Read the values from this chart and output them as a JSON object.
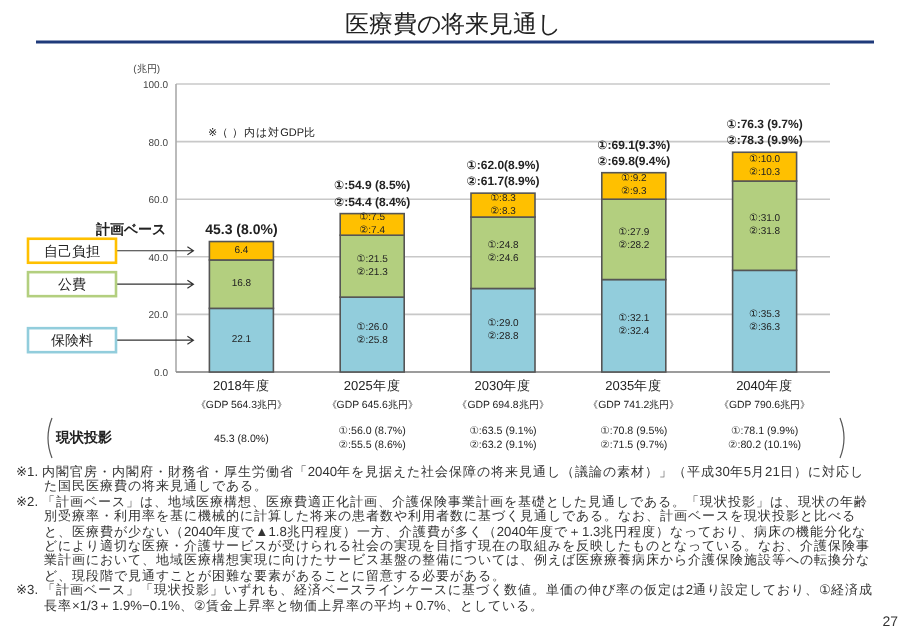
{
  "chart_data": {
    "type": "bar",
    "stacked": true,
    "title": "医療費の将来見通し",
    "ylabel": "(兆円)",
    "categories": [
      "2018年度",
      "2025年度",
      "2030年度",
      "2035年度",
      "2040年度"
    ],
    "series": [
      {
        "name": "保険料",
        "color": "#92cddc",
        "values": [
          22.1,
          26.0,
          29.0,
          32.1,
          35.3
        ],
        "value_labels": [
          "22.1",
          "①:26.0\n②:25.8",
          "①:29.0\n②:28.8",
          "①:32.1\n②:32.4",
          "①:35.3\n②:36.3"
        ]
      },
      {
        "name": "公費",
        "color": "#b3cf7f",
        "values": [
          16.8,
          21.5,
          24.8,
          27.9,
          31.0
        ],
        "value_labels": [
          "16.8",
          "①:21.5\n②:21.3",
          "①:24.8\n②:24.6",
          "①:27.9\n②:28.2",
          "①:31.0\n②:31.8"
        ]
      },
      {
        "name": "自己負担",
        "color": "#ffc000",
        "values": [
          6.4,
          7.5,
          8.3,
          9.2,
          10.0
        ],
        "value_labels": [
          "6.4",
          "①:7.5\n②:7.4",
          "①:8.3\n②:8.3",
          "①:9.2\n②:9.3",
          "①:10.0\n②:10.3"
        ]
      }
    ],
    "totals": [
      "45.3 (8.0%)",
      "①:54.9 (8.5%)\n②:54.4 (8.4%)",
      "①:62.0(8.9%)\n②:61.7(8.9%)",
      "①:69.1(9.3%)\n②:69.8(9.4%)",
      "①:76.3 (9.7%)\n②:78.3 (9.9%)"
    ],
    "ylim": [
      0,
      100
    ],
    "yticks": [
      {
        "value": 0,
        "label": "0.0"
      },
      {
        "value": 20,
        "label": "20.0"
      },
      {
        "value": 40,
        "label": "40.0"
      },
      {
        "value": 60,
        "label": "60.0"
      },
      {
        "value": 80,
        "label": "80.0"
      },
      {
        "value": 100,
        "label": "100.0"
      }
    ],
    "grid": "y",
    "legend": "left",
    "annotations": [
      "※（ ）内は対GDP比",
      "計画ベース",
      "現状投影",
      "45.3 (8.0%)",
      "①:56.0 (8.7%)\n②:55.5 (8.6%)",
      "①:63.5 (9.1%)\n②:63.2 (9.1%)",
      "①:70.8 (9.5%)\n②:71.5 (9.7%)",
      "①:78.1 (9.9%)\n②:80.2 (10.1%)",
      "《GDP 564.3兆円》",
      "《GDP 645.6兆円》",
      "《GDP 694.8兆円》",
      "《GDP 741.2兆円》",
      "《GDP 790.6兆円》",
      "※1. 内閣官房・内閣府・財務省・厚生労働省「2040年を見据えた社会保障の将来見通し（議論の素材）」（平成30年5月21日）に対応した国民医療費の将来見通しである。",
      "※2. 「計画ベース」は、地域医療構想、医療費適正化計画、介護保険事業計画を基礎とした見通しである。「現状投影」は、現状の年齢別受療率・利用率を基に機械的に計算した将来の患者数や利用者数に基づく見通しである。なお、計画ベースを現状投影と比べると、医療費が少ない（2040年度で▲1.8兆円程度）一方、介護費が多く（2040年度で＋1.3兆円程度）なっており、病床の機能分化などにより適切な医療・介護サービスが受けられる社会の実現を目指す現在の取組みを反映したものとなっている。なお、介護保険事業計画において、地域医療構想実現に向けたサービス基盤の整備については、例えば医療療養病床から介護保険施設等への転換分など、現段階で見通すことが困難な要素があることに留意する必要がある。",
      "※3. 「計画ベース」「現状投影」いずれも、経済ベースラインケースに基づく数値。単価の伸び率の仮定は2通り設定しており、①経済成長率×1/3＋1.9%−0.1%、②賃金上昇率と物価上昇率の平均＋0.7%、としている。",
      "27"
    ]
  }
}
